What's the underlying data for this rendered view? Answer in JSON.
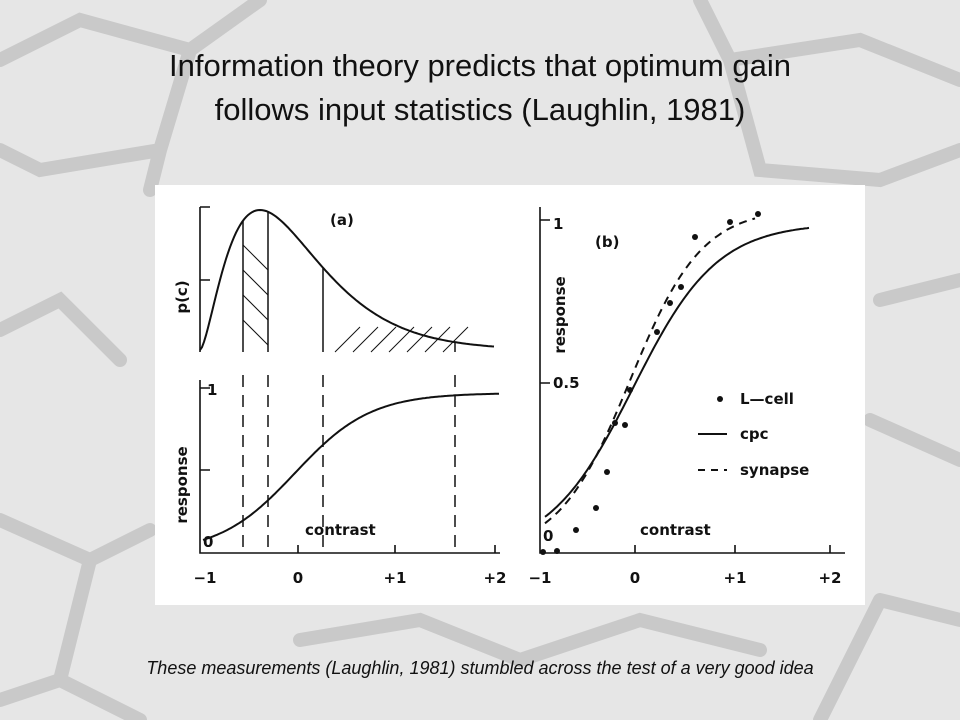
{
  "slide": {
    "title_lines": [
      "Information theory predicts that optimum gain",
      "follows input statistics (Laughlin, 1981)"
    ],
    "caption": "These measurements (Laughlin, 1981)  stumbled across the test of a very good idea"
  },
  "figure": {
    "panel_a": {
      "label": "(a)",
      "top_ylabel": "p(c)",
      "bottom_ylabel": "response",
      "xlabel": "contrast",
      "yticks": [
        "1",
        "0"
      ],
      "xticks": [
        "−1",
        "0",
        "+1",
        "+2"
      ]
    },
    "panel_b": {
      "label": "(b)",
      "ylabel": "response",
      "xlabel": "contrast",
      "yticks": [
        "1",
        "0.5",
        "0"
      ],
      "xticks": [
        "−1",
        "0",
        "+1",
        "+2"
      ],
      "legend": [
        "L—cell",
        "cpc",
        "synapse"
      ]
    }
  }
}
